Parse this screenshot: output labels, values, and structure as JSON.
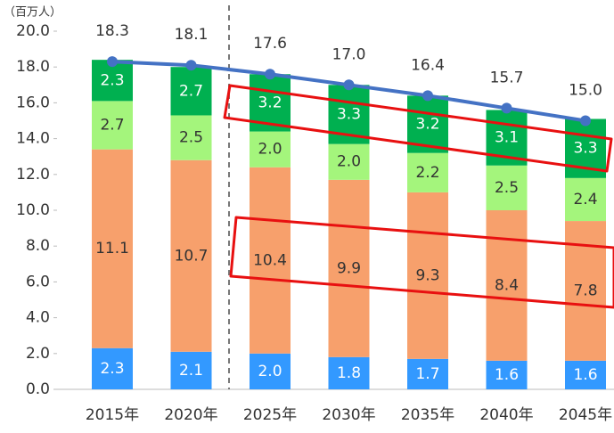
{
  "chart_data": {
    "type": "stacked-bar-line",
    "y_label": "（百万人）",
    "categories": [
      "2015年",
      "2020年",
      "2025年",
      "2030年",
      "2035年",
      "2040年",
      "2045年"
    ],
    "series": [
      {
        "color": "#3399ff",
        "label_color": "#ffffff",
        "values": [
          2.3,
          2.1,
          2.0,
          1.8,
          1.7,
          1.6,
          1.6
        ],
        "value_labels": [
          "2.3",
          "2.1",
          "2.0",
          "1.8",
          "1.7",
          "1.6",
          "1.6"
        ]
      },
      {
        "color": "#f7a06c",
        "label_color": "#333333",
        "values": [
          11.1,
          10.7,
          10.4,
          9.9,
          9.3,
          8.4,
          7.8
        ],
        "value_labels": [
          "11.1",
          "10.7",
          "10.4",
          "9.9",
          "9.3",
          "8.4",
          "7.8"
        ]
      },
      {
        "color": "#a4f57c",
        "label_color": "#333333",
        "values": [
          2.7,
          2.5,
          2.0,
          2.0,
          2.2,
          2.5,
          2.4
        ],
        "value_labels": [
          "2.7",
          "2.5",
          "2.0",
          "2.0",
          "2.2",
          "2.5",
          "2.4"
        ]
      },
      {
        "color": "#00b050",
        "label_color": "#ffffff",
        "values": [
          2.3,
          2.7,
          3.2,
          3.3,
          3.2,
          3.1,
          3.3
        ],
        "value_labels": [
          "2.3",
          "2.7",
          "3.2",
          "3.3",
          "3.2",
          "3.1",
          "3.3"
        ]
      }
    ],
    "total": {
      "color": "#4472c4",
      "values": [
        18.3,
        18.1,
        17.6,
        17.0,
        16.4,
        15.7,
        15.0
      ],
      "value_labels": [
        "18.3",
        "18.1",
        "17.6",
        "17.0",
        "16.4",
        "15.7",
        "15.0"
      ]
    },
    "ylim": [
      0,
      20
    ],
    "yticks": [
      {
        "value": 0,
        "label": "0.0"
      },
      {
        "value": 2,
        "label": "2.0"
      },
      {
        "value": 4,
        "label": "4.0"
      },
      {
        "value": 6,
        "label": "6.0"
      },
      {
        "value": 8,
        "label": "8.0"
      },
      {
        "value": 10,
        "label": "10.0"
      },
      {
        "value": 12,
        "label": "12.0"
      },
      {
        "value": 14,
        "label": "14.0"
      },
      {
        "value": 16,
        "label": "16.0"
      },
      {
        "value": 18,
        "label": "18.0"
      },
      {
        "value": 20,
        "label": "20.0"
      }
    ]
  }
}
